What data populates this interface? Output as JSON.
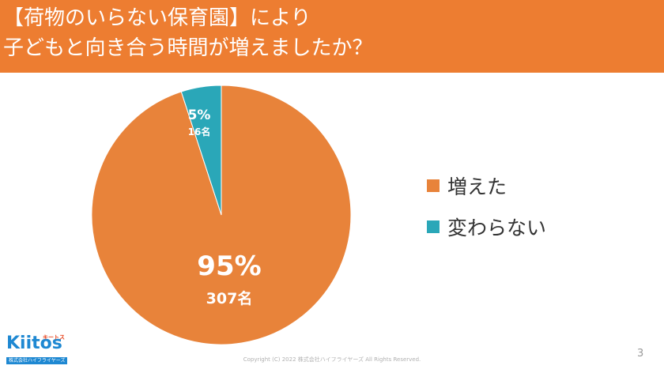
{
  "header": {
    "title_line1": "【荷物のいらない保育園】により",
    "title_line2": "子どもと向き合う時間が増えましたか？",
    "background_color": "#ED7D31"
  },
  "chart_data": {
    "type": "pie",
    "title": "【荷物のいらない保育園】により子どもと向き合う時間が増えましたか？",
    "slices": [
      {
        "label": "増えた",
        "value": 95,
        "percent_label": "95%",
        "count_label": "307名",
        "count": 307,
        "color": "#E8833A"
      },
      {
        "label": "変わらない",
        "value": 5,
        "percent_label": "5%",
        "count_label": "16名",
        "count": 16,
        "color": "#2AA7B8"
      }
    ],
    "legend_position": "right"
  },
  "legend": [
    {
      "label": "増えた",
      "color": "#E8833A"
    },
    {
      "label": "変わらない",
      "color": "#2AA7B8"
    }
  ],
  "footer": {
    "logo_text": "Kiitos",
    "logo_kana": "キートス",
    "logo_sub": "株式会社ハイフライヤーズ",
    "copyright": "Copyright (C) 2022 株式会社ハイフライヤーズ All Rights Reserved.",
    "page_number": "3"
  }
}
